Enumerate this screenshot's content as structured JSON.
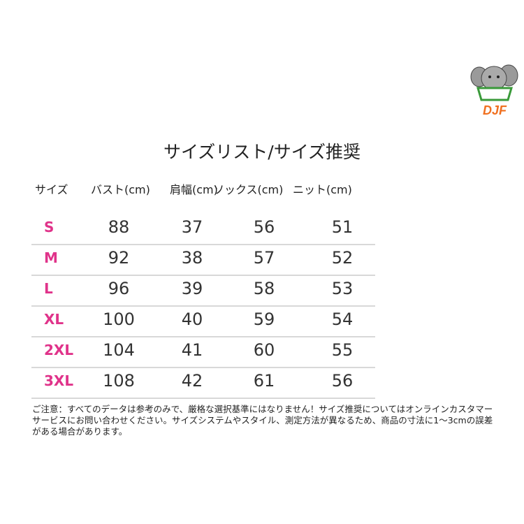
{
  "title": "サイズリスト/サイズ推奨",
  "headers": [
    "サイズ",
    "バスト(cm)",
    "肩幅(cm)",
    "ソックス(cm)",
    "ニット(cm)"
  ],
  "rows": [
    {
      "size": "S",
      "values": [
        "88",
        "37",
        "56",
        "51"
      ]
    },
    {
      "size": "M",
      "values": [
        "92",
        "38",
        "57",
        "52"
      ]
    },
    {
      "size": "L",
      "values": [
        "96",
        "39",
        "58",
        "53"
      ]
    },
    {
      "size": "XL",
      "values": [
        "100",
        "40",
        "59",
        "54"
      ]
    },
    {
      "size": "2XL",
      "values": [
        "104",
        "41",
        "60",
        "55"
      ]
    },
    {
      "size": "3XL",
      "values": [
        "108",
        "42",
        "61",
        "56"
      ]
    }
  ],
  "note": "ご注意：すべてのデータは参考のみで、厳格な選択基準にはなりません！サイズ推奨についてはオンラインカスタマーサービスにお問い合わせください。サイズシステムやスタイル、測定方法が異なるため、商品の寸法に1〜3cmの誤差がある場合があります。",
  "logo": {
    "text": "DJF",
    "accent": "#f07020",
    "size_color": "#e0338a"
  }
}
